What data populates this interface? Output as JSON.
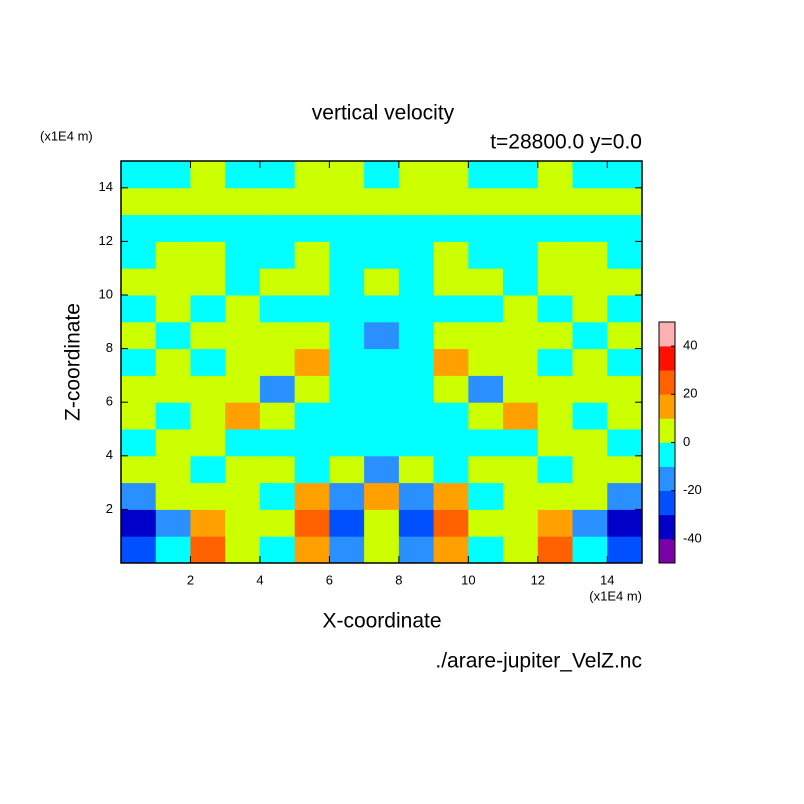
{
  "chart_data": {
    "type": "contour",
    "title": "vertical velocity",
    "subtitle": "t=28800.0 y=0.0",
    "xlabel": "X-coordinate",
    "ylabel": "Z-coordinate",
    "x_unit": "(x1E4 m)",
    "y_unit": "(x1E4 m)",
    "source": "./arare-jupiter_VelZ.nc",
    "xlim": [
      0,
      15
    ],
    "ylim": [
      0,
      15
    ],
    "xticks": [
      2,
      4,
      6,
      8,
      10,
      12,
      14
    ],
    "yticks": [
      2,
      4,
      6,
      8,
      10,
      12,
      14
    ],
    "x": [
      0.5,
      1.5,
      2.5,
      3.5,
      4.5,
      5.5,
      6.5,
      7.5,
      8.5,
      9.5,
      10.5,
      11.5,
      12.5,
      13.5,
      14.5
    ],
    "y": [
      0.5,
      1.5,
      2.5,
      3.5,
      4.5,
      5.5,
      6.5,
      7.5,
      8.5,
      9.5,
      10.5,
      11.5,
      12.5,
      13.5,
      14.5
    ],
    "z": [
      [
        -25,
        -5,
        25,
        5,
        -5,
        15,
        -15,
        5,
        -15,
        15,
        -5,
        5,
        25,
        -5,
        -25
      ],
      [
        -35,
        -15,
        15,
        5,
        5,
        25,
        -25,
        5,
        -25,
        25,
        5,
        5,
        15,
        -15,
        -35
      ],
      [
        -15,
        5,
        5,
        5,
        -5,
        15,
        -15,
        15,
        -15,
        15,
        -5,
        5,
        5,
        5,
        -15
      ],
      [
        5,
        5,
        -5,
        5,
        5,
        -5,
        5,
        -15,
        5,
        -5,
        5,
        5,
        -5,
        5,
        5
      ],
      [
        -5,
        5,
        5,
        -5,
        -5,
        -5,
        -5,
        -5,
        -5,
        -5,
        -5,
        -5,
        5,
        5,
        -5
      ],
      [
        5,
        -5,
        5,
        15,
        5,
        -5,
        -5,
        -5,
        -5,
        -5,
        5,
        15,
        5,
        -5,
        5
      ],
      [
        5,
        5,
        5,
        5,
        -15,
        5,
        -5,
        -5,
        -5,
        5,
        -15,
        5,
        5,
        5,
        5
      ],
      [
        -5,
        5,
        -5,
        5,
        5,
        15,
        -5,
        -5,
        -5,
        15,
        5,
        5,
        -5,
        5,
        -5
      ],
      [
        5,
        -5,
        5,
        5,
        5,
        5,
        -5,
        -15,
        -5,
        5,
        5,
        5,
        5,
        -5,
        5
      ],
      [
        -5,
        5,
        -5,
        5,
        -5,
        -5,
        -5,
        -5,
        -5,
        -5,
        -5,
        5,
        -5,
        5,
        -5
      ],
      [
        5,
        5,
        5,
        -5,
        5,
        5,
        -5,
        5,
        -5,
        5,
        5,
        -5,
        5,
        5,
        5
      ],
      [
        -5,
        5,
        5,
        -5,
        -5,
        5,
        -5,
        -5,
        -5,
        5,
        -5,
        -5,
        5,
        5,
        -5
      ],
      [
        -5,
        -5,
        -5,
        -5,
        -5,
        -5,
        -5,
        -5,
        -5,
        -5,
        -5,
        -5,
        -5,
        -5,
        -5
      ],
      [
        5,
        5,
        5,
        5,
        5,
        5,
        5,
        5,
        5,
        5,
        5,
        5,
        5,
        5,
        5
      ],
      [
        -5,
        -5,
        5,
        -5,
        -5,
        5,
        5,
        -5,
        5,
        5,
        -5,
        -5,
        5,
        -5,
        -5
      ]
    ],
    "levels": [
      -50,
      -40,
      -30,
      -20,
      -10,
      0,
      10,
      20,
      30,
      40,
      50
    ],
    "colors": [
      "#7a00a8",
      "#0000c8",
      "#0050ff",
      "#2a90ff",
      "#00ffff",
      "#ccff00",
      "#ffa000",
      "#ff6000",
      "#ff1000",
      "#ffb0b0"
    ],
    "clim": [
      -50,
      50
    ],
    "cticks": [
      -40,
      -20,
      0,
      20,
      40
    ]
  }
}
